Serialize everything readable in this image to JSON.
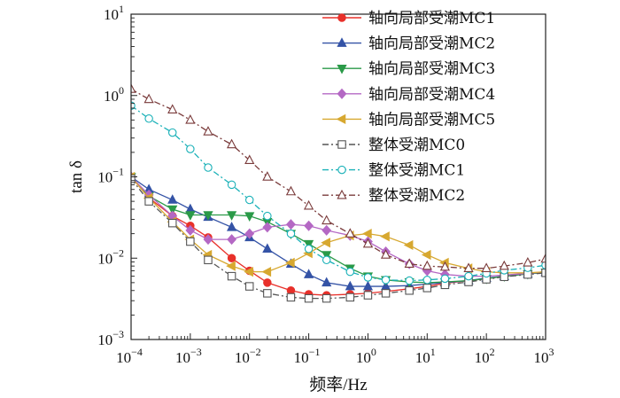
{
  "chart_data": {
    "type": "line",
    "xscale": "log",
    "yscale": "log",
    "xlim": [
      0.0001,
      1000
    ],
    "ylim": [
      0.001,
      10
    ],
    "xlabel": "频率/Hz",
    "ylabel": "tan δ",
    "grid": false,
    "legend_position": "top-right",
    "x_ticks": [
      {
        "value": 0.0001,
        "base": "10",
        "exp": "−4"
      },
      {
        "value": 0.001,
        "base": "10",
        "exp": "−3"
      },
      {
        "value": 0.01,
        "base": "10",
        "exp": "−2"
      },
      {
        "value": 0.1,
        "base": "10",
        "exp": "−1"
      },
      {
        "value": 1,
        "base": "10",
        "exp": "0"
      },
      {
        "value": 10,
        "base": "10",
        "exp": "1"
      },
      {
        "value": 100,
        "base": "10",
        "exp": "2"
      },
      {
        "value": 1000,
        "base": "10",
        "exp": "3"
      }
    ],
    "y_ticks": [
      {
        "value": 0.001,
        "base": "10",
        "exp": "−3"
      },
      {
        "value": 0.01,
        "base": "10",
        "exp": "−2"
      },
      {
        "value": 0.1,
        "base": "10",
        "exp": "−1"
      },
      {
        "value": 1,
        "base": "10",
        "exp": "0"
      },
      {
        "value": 10,
        "base": "10",
        "exp": "1"
      }
    ],
    "x": [
      0.0001,
      0.0002,
      0.0005,
      0.001,
      0.002,
      0.005,
      0.01,
      0.02,
      0.05,
      0.1,
      0.2,
      0.5,
      1,
      2,
      5,
      10,
      20,
      50,
      100,
      200,
      500,
      1000
    ],
    "series": [
      {
        "name": "轴向局部受潮MC1",
        "color": "#e8302a",
        "marker": "circle",
        "dash": "solid",
        "values": [
          0.1,
          0.055,
          0.033,
          0.025,
          0.018,
          0.01,
          0.007,
          0.005,
          0.004,
          0.0036,
          0.0035,
          0.0036,
          0.0037,
          0.0039,
          0.0042,
          0.0045,
          0.0049,
          0.0053,
          0.0056,
          0.006,
          0.0064,
          0.0067
        ]
      },
      {
        "name": "轴向局部受潮MC2",
        "color": "#3453a6",
        "marker": "triangle-up",
        "dash": "solid",
        "values": [
          0.1,
          0.07,
          0.052,
          0.04,
          0.032,
          0.024,
          0.018,
          0.013,
          0.0085,
          0.0063,
          0.005,
          0.0045,
          0.0045,
          0.0045,
          0.0046,
          0.0048,
          0.005,
          0.0053,
          0.0057,
          0.006,
          0.0064,
          0.0067
        ]
      },
      {
        "name": "轴向局部受潮MC3",
        "color": "#2a9a48",
        "marker": "triangle-down",
        "dash": "solid",
        "values": [
          0.1,
          0.058,
          0.04,
          0.034,
          0.034,
          0.034,
          0.033,
          0.028,
          0.02,
          0.015,
          0.011,
          0.0075,
          0.006,
          0.0054,
          0.0051,
          0.005,
          0.0051,
          0.0053,
          0.0056,
          0.006,
          0.0064,
          0.0067
        ]
      },
      {
        "name": "轴向局部受潮MC4",
        "color": "#b468c4",
        "marker": "diamond",
        "dash": "solid",
        "values": [
          0.1,
          0.06,
          0.033,
          0.022,
          0.017,
          0.017,
          0.02,
          0.024,
          0.026,
          0.025,
          0.022,
          0.019,
          0.016,
          0.012,
          0.0085,
          0.007,
          0.0063,
          0.006,
          0.006,
          0.0062,
          0.0065,
          0.0068
        ]
      },
      {
        "name": "轴向局部受潮MC5",
        "color": "#d7a830",
        "marker": "triangle-left",
        "dash": "solid",
        "values": [
          0.1,
          0.055,
          0.028,
          0.017,
          0.011,
          0.008,
          0.0068,
          0.0068,
          0.0088,
          0.0115,
          0.0155,
          0.019,
          0.02,
          0.0185,
          0.0145,
          0.011,
          0.0088,
          0.0075,
          0.0068,
          0.0066,
          0.0066,
          0.0068
        ]
      },
      {
        "name": "整体受潮MC0",
        "color": "#555555",
        "marker": "square-open",
        "dash": "dashdot",
        "values": [
          0.095,
          0.05,
          0.027,
          0.016,
          0.0095,
          0.006,
          0.0045,
          0.0037,
          0.0033,
          0.0032,
          0.0032,
          0.0033,
          0.0035,
          0.0037,
          0.004,
          0.0043,
          0.0047,
          0.0051,
          0.0055,
          0.0059,
          0.0063,
          0.0066
        ]
      },
      {
        "name": "整体受潮MC1",
        "color": "#1ab1b8",
        "marker": "circle-open",
        "dash": "dashdot",
        "values": [
          0.75,
          0.52,
          0.35,
          0.22,
          0.13,
          0.08,
          0.052,
          0.033,
          0.02,
          0.013,
          0.0095,
          0.0068,
          0.0058,
          0.0054,
          0.0053,
          0.0054,
          0.0056,
          0.006,
          0.0065,
          0.0071,
          0.0076,
          0.0082
        ]
      },
      {
        "name": "整体受潮MC2",
        "color": "#7a3b3b",
        "marker": "triangle-open",
        "dash": "dashdot",
        "values": [
          1.2,
          0.9,
          0.67,
          0.5,
          0.36,
          0.25,
          0.16,
          0.1,
          0.066,
          0.044,
          0.029,
          0.02,
          0.015,
          0.011,
          0.0085,
          0.008,
          0.0078,
          0.0075,
          0.0075,
          0.008,
          0.0088,
          0.0098
        ]
      }
    ]
  }
}
